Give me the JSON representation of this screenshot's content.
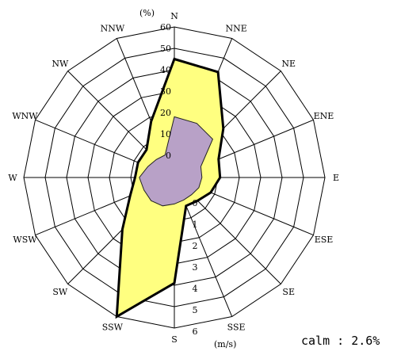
{
  "chart_data": {
    "type": "radar",
    "directions": [
      "N",
      "NNE",
      "NE",
      "ENE",
      "E",
      "ESE",
      "SE",
      "SSE",
      "S",
      "SSW",
      "SW",
      "WSW",
      "W",
      "WNW",
      "NW",
      "NNW"
    ],
    "frequency_axis": {
      "unit_label": "(%)",
      "ticks": [
        "0",
        "10",
        "20",
        "30",
        "40",
        "50",
        "60"
      ],
      "range": [
        0,
        60
      ]
    },
    "speed_axis": {
      "unit_label": "(m/s)",
      "ticks": [
        "0",
        "1",
        "2",
        "3",
        "4",
        "5",
        "6"
      ],
      "range": [
        0,
        6
      ]
    },
    "series": [
      {
        "axis": "frequency",
        "values": [
          45,
          43,
          22,
          12,
          11,
          8,
          5,
          4,
          39,
          60,
          24,
          12,
          8,
          8,
          8,
          18
        ],
        "color": "#ffff80",
        "stroke": "#000000"
      },
      {
        "axis": "speed",
        "values": [
          1.8,
          1.7,
          1.5,
          0.3,
          0.25,
          0.2,
          0.1,
          0.1,
          0.2,
          0.4,
          0.5,
          0.5,
          0.6,
          0.3,
          0.15,
          0.1
        ],
        "color": "#b8a1c7",
        "stroke": "#222222"
      }
    ],
    "calm": "calm : 2.6%"
  }
}
